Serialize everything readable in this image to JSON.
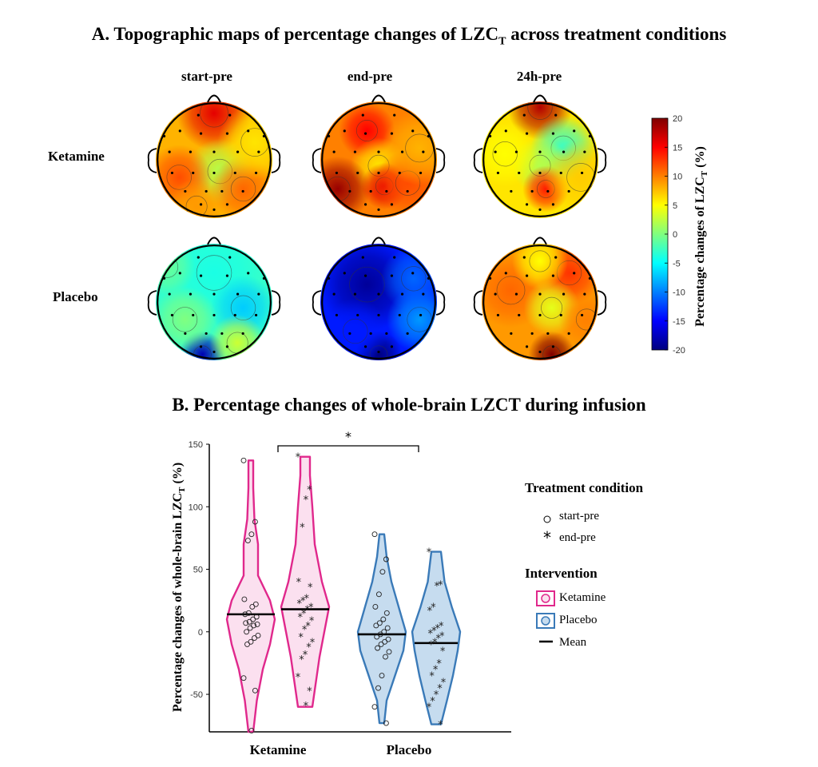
{
  "panel_a": {
    "title_main": "A. Topographic maps of percentage changes of LZC",
    "title_sub": "T",
    "title_tail": " across treatment conditions",
    "columns": [
      "start-pre",
      "end-pre",
      "24h-pre"
    ],
    "rows": [
      "Ketamine",
      "Placebo"
    ],
    "colorbar": {
      "label_main": "Percentage changes of LZC",
      "label_sub": "T",
      "label_tail": " (%)",
      "ticks": [
        "20",
        "15",
        "10",
        "5",
        "0",
        "-5",
        "-10",
        "-15",
        "-20"
      ],
      "range": [
        -20,
        20
      ],
      "colors": [
        "#00007f",
        "#0000ff",
        "#007fff",
        "#00ffff",
        "#7fff7f",
        "#ffff00",
        "#ff7f00",
        "#ff0000",
        "#7f0000"
      ]
    },
    "maps": [
      {
        "row": "Ketamine",
        "col": "start-pre",
        "base": 8,
        "blobs": [
          [
            0,
            -0.8,
            16,
            0.4
          ],
          [
            0.1,
            0.2,
            2,
            0.35
          ],
          [
            -0.6,
            0.3,
            12,
            0.35
          ],
          [
            0.5,
            0.5,
            11,
            0.35
          ],
          [
            -0.3,
            0.8,
            9,
            0.3
          ],
          [
            0.7,
            -0.3,
            6,
            0.4
          ]
        ]
      },
      {
        "row": "Ketamine",
        "col": "end-pre",
        "base": 10,
        "blobs": [
          [
            -0.2,
            -0.5,
            15,
            0.3
          ],
          [
            0,
            0.1,
            6,
            0.3
          ],
          [
            -0.7,
            0.5,
            19,
            0.35
          ],
          [
            0.1,
            0.45,
            16,
            0.25
          ],
          [
            0.5,
            0.4,
            12,
            0.35
          ],
          [
            0.7,
            -0.2,
            8,
            0.4
          ]
        ]
      },
      {
        "row": "Ketamine",
        "col": "24h-pre",
        "base": 6,
        "blobs": [
          [
            0,
            -0.9,
            18,
            0.35
          ],
          [
            0.4,
            -0.2,
            -3,
            0.35
          ],
          [
            0,
            0.1,
            2,
            0.3
          ],
          [
            0.1,
            0.5,
            14,
            0.25
          ],
          [
            -0.6,
            -0.1,
            5,
            0.35
          ],
          [
            0.7,
            0.3,
            7,
            0.4
          ]
        ]
      },
      {
        "row": "Placebo",
        "col": "start-pre",
        "base": -3,
        "blobs": [
          [
            0,
            -0.5,
            -4,
            0.5
          ],
          [
            -0.2,
            0.9,
            -18,
            0.25
          ],
          [
            0.5,
            0.1,
            -7,
            0.35
          ],
          [
            -0.5,
            0.3,
            0,
            0.35
          ],
          [
            0.4,
            0.7,
            3,
            0.3
          ],
          [
            -0.8,
            -0.6,
            -1,
            0.3
          ]
        ]
      },
      {
        "row": "Placebo",
        "col": "end-pre",
        "base": -14,
        "blobs": [
          [
            -0.2,
            -0.3,
            -19,
            0.5
          ],
          [
            0,
            0.9,
            -20,
            0.25
          ],
          [
            0.7,
            0.3,
            -9,
            0.35
          ],
          [
            0.6,
            -0.4,
            -11,
            0.35
          ],
          [
            -0.4,
            0.5,
            -14,
            0.35
          ]
        ]
      },
      {
        "row": "Placebo",
        "col": "24h-pre",
        "base": 9,
        "blobs": [
          [
            0.2,
            0.9,
            20,
            0.25
          ],
          [
            -0.5,
            -0.2,
            11,
            0.4
          ],
          [
            0.5,
            -0.5,
            13,
            0.35
          ],
          [
            0.2,
            0.1,
            4,
            0.3
          ],
          [
            0.8,
            0.3,
            10,
            0.3
          ],
          [
            0,
            -0.7,
            5,
            0.3
          ]
        ]
      }
    ]
  },
  "chart_data": {
    "type": "violin",
    "title": "B. Percentage changes of whole-brain LZCT during infusion",
    "ylabel_main": "Percentage changes of whole-brain LZC",
    "ylabel_sub": "T",
    "ylabel_tail": " (%)",
    "ylim": [
      -80,
      150
    ],
    "yticks": [
      150,
      100,
      50,
      0,
      -50
    ],
    "categories": [
      "Ketamine",
      "Placebo"
    ],
    "significance": "*",
    "violins": [
      {
        "group": "Ketamine",
        "condition": "start-pre",
        "mean": 14,
        "min": -80,
        "max": 137,
        "width_profile": [
          [
            -80,
            0.1
          ],
          [
            -55,
            0.25
          ],
          [
            -30,
            0.5
          ],
          [
            -10,
            0.8
          ],
          [
            10,
            1.0
          ],
          [
            25,
            0.8
          ],
          [
            45,
            0.3
          ],
          [
            70,
            0.3
          ],
          [
            90,
            0.15
          ],
          [
            115,
            0.1
          ],
          [
            137,
            0.1
          ]
        ],
        "points": [
          137,
          88,
          78,
          73,
          26,
          22,
          20,
          15,
          14,
          12,
          10,
          8,
          7,
          6,
          5,
          3,
          0,
          -3,
          -5,
          -8,
          -10,
          -37,
          -47,
          -79
        ]
      },
      {
        "group": "Ketamine",
        "condition": "end-pre",
        "mean": 18,
        "min": -60,
        "max": 140,
        "width_profile": [
          [
            -60,
            0.3
          ],
          [
            -40,
            0.45
          ],
          [
            -20,
            0.6
          ],
          [
            0,
            0.8
          ],
          [
            20,
            1.0
          ],
          [
            40,
            0.7
          ],
          [
            70,
            0.4
          ],
          [
            100,
            0.3
          ],
          [
            125,
            0.2
          ],
          [
            140,
            0.2
          ]
        ],
        "points": [
          140,
          114,
          106,
          84,
          40,
          36,
          27,
          25,
          23,
          20,
          18,
          15,
          12,
          9,
          5,
          2,
          -4,
          -8,
          -12,
          -18,
          -22,
          -36,
          -47,
          -59
        ]
      },
      {
        "group": "Placebo",
        "condition": "start-pre",
        "mean": -2,
        "min": -73,
        "max": 78,
        "width_profile": [
          [
            -73,
            0.1
          ],
          [
            -55,
            0.2
          ],
          [
            -35,
            0.55
          ],
          [
            -15,
            0.9
          ],
          [
            0,
            1.0
          ],
          [
            20,
            0.7
          ],
          [
            40,
            0.4
          ],
          [
            60,
            0.2
          ],
          [
            78,
            0.1
          ]
        ],
        "points": [
          78,
          58,
          48,
          30,
          20,
          15,
          10,
          7,
          5,
          3,
          0,
          -2,
          -4,
          -6,
          -8,
          -10,
          -13,
          -16,
          -20,
          -35,
          -45,
          -60,
          -73
        ]
      },
      {
        "group": "Placebo",
        "condition": "end-pre",
        "mean": -9,
        "min": -74,
        "max": 64,
        "width_profile": [
          [
            -74,
            0.2
          ],
          [
            -55,
            0.45
          ],
          [
            -35,
            0.7
          ],
          [
            -15,
            0.9
          ],
          [
            0,
            1.0
          ],
          [
            20,
            0.65
          ],
          [
            40,
            0.35
          ],
          [
            64,
            0.2
          ]
        ],
        "points": [
          64,
          38,
          37,
          20,
          17,
          5,
          3,
          1,
          -1,
          -3,
          -5,
          -8,
          -10,
          -15,
          -25,
          -30,
          -35,
          -40,
          -45,
          -50,
          -55,
          -60,
          -74
        ]
      }
    ],
    "legend": {
      "title_condition": "Treatment condition",
      "conditions": [
        {
          "label": "start-pre",
          "marker": "circle"
        },
        {
          "label": "end-pre",
          "marker": "asterisk"
        }
      ],
      "title_intervention": "Intervention",
      "interventions": [
        {
          "label": "Ketamine",
          "edge": "#e0288c",
          "fill": "#fbe0ef"
        },
        {
          "label": "Placebo",
          "edge": "#3a7ab8",
          "fill": "#c6dcef"
        },
        {
          "label": "Mean",
          "marker": "line"
        }
      ]
    }
  }
}
